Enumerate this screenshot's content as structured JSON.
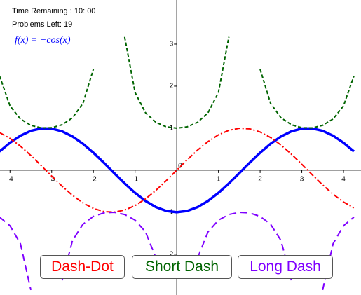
{
  "chart_data": {
    "type": "line",
    "x": [
      -4.25,
      -4,
      -3.75,
      -3.5,
      -3.25,
      -3,
      -2.75,
      -2.5,
      -2.25,
      -2,
      -1.75,
      -1.5,
      -1.25,
      -1,
      -0.75,
      -0.5,
      -0.25,
      0,
      0.25,
      0.5,
      0.75,
      1,
      1.25,
      1.5,
      1.75,
      2,
      2.25,
      2.5,
      2.75,
      3,
      3.25,
      3.5,
      3.75,
      4,
      4.25
    ],
    "series": [
      {
        "color": "#0000ff",
        "line_style": "solid",
        "values": [
          0.4461,
          0.6536,
          0.8206,
          0.9365,
          0.9941,
          0.99,
          0.9243,
          0.8011,
          0.6282,
          0.4161,
          0.1782,
          -0.0707,
          -0.3153,
          -0.5403,
          -0.7317,
          -0.8776,
          -0.9689,
          -1,
          -0.9689,
          -0.8776,
          -0.7317,
          -0.5403,
          -0.3153,
          -0.0707,
          0.1782,
          0.4161,
          0.6282,
          0.8011,
          0.9243,
          0.99,
          0.9941,
          0.9365,
          0.8206,
          0.6536,
          0.4461
        ]
      },
      {
        "color": "#ff0000",
        "line_style": "dash-dot",
        "values": [
          0.895,
          0.7568,
          0.5716,
          0.3508,
          0.1082,
          -0.1411,
          -0.3817,
          -0.5985,
          -0.7781,
          -0.9093,
          -0.984,
          -0.9975,
          -0.949,
          -0.8415,
          -0.6816,
          -0.4794,
          -0.2474,
          0,
          0.2474,
          0.4794,
          0.6816,
          0.8415,
          0.949,
          0.9975,
          0.984,
          0.9093,
          0.7781,
          0.5985,
          0.3817,
          0.1411,
          -0.1082,
          -0.3508,
          -0.5716,
          -0.7568,
          -0.895
        ]
      },
      {
        "color": "#006400",
        "line_style": "short-dash",
        "values": [
          2.242,
          1.53,
          1.219,
          1.068,
          1.006,
          1.01,
          1.082,
          1.248,
          1.592,
          2.403,
          null,
          null,
          3.171,
          1.851,
          1.367,
          1.139,
          1.032,
          1,
          1.032,
          1.139,
          1.367,
          1.851,
          3.171,
          null,
          null,
          2.403,
          1.592,
          1.248,
          1.082,
          1.01,
          1.006,
          1.068,
          1.219,
          1.53,
          2.242
        ]
      },
      {
        "color": "#7f00ff",
        "line_style": "long-dash",
        "values": [
          -1.117,
          -1.321,
          -1.75,
          -2.851,
          null,
          null,
          -2.62,
          -1.671,
          -1.285,
          -1.1,
          -1.016,
          -1.003,
          -1.054,
          -1.188,
          -1.467,
          -2.086,
          null,
          null,
          null,
          -2.086,
          -1.467,
          -1.188,
          -1.054,
          -1.003,
          -1.016,
          -1.1,
          -1.285,
          -1.671,
          -2.62,
          null,
          null,
          -2.851,
          -1.75,
          -1.321,
          -1.117
        ]
      }
    ],
    "xlim": [
      -4.24,
      4.42
    ],
    "ylim": [
      -2.97,
      4.05
    ],
    "xticks": [
      -4,
      -3,
      -2,
      -1,
      1,
      2,
      3,
      4
    ],
    "yticks": [
      -2,
      -1,
      1,
      2,
      3
    ],
    "origin_label": "0",
    "grid": false
  },
  "panel": {
    "time_remaining": "Time Remaining : 10: 00",
    "problems_left": "Problems Left:  19",
    "function_label": "f(x) = −cos(x)"
  },
  "buttons": [
    {
      "text": "Dash-Dot",
      "color": "#ff0000"
    },
    {
      "text": "Short Dash",
      "color": "#006400"
    },
    {
      "text": "Long Dash",
      "color": "#7f00ff"
    }
  ]
}
